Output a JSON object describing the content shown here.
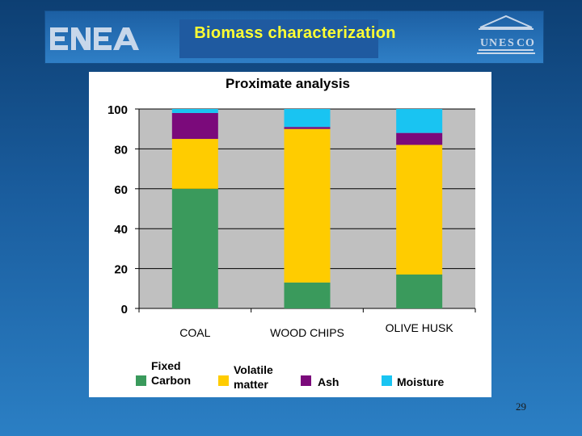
{
  "slide": {
    "title": "Biomass characterization",
    "page_number": "29"
  },
  "logos": {
    "left": "ENEA",
    "right": "UNESCO"
  },
  "chart_data": {
    "type": "bar",
    "stacked": true,
    "title": "Proximate analysis",
    "xlabel": "",
    "ylabel": "",
    "ylim": [
      0,
      100
    ],
    "yticks": [
      0,
      20,
      40,
      60,
      80,
      100
    ],
    "grid": true,
    "legend_position": "bottom",
    "categories": [
      "COAL",
      "WOOD CHIPS",
      "OLIVE HUSK"
    ],
    "series": [
      {
        "name": "Fixed Carbon",
        "color": "#3a9a5c",
        "values": [
          60,
          13,
          17
        ]
      },
      {
        "name": "Volatile matter",
        "color": "#ffcc00",
        "values": [
          25,
          77,
          65
        ]
      },
      {
        "name": "Ash",
        "color": "#7b0a7b",
        "values": [
          13,
          1,
          6
        ]
      },
      {
        "name": "Moisture",
        "color": "#19c4f2",
        "values": [
          2,
          9,
          12
        ]
      }
    ],
    "colors": {
      "plot_background": "#c0c0c0",
      "gridline": "#000000"
    }
  }
}
